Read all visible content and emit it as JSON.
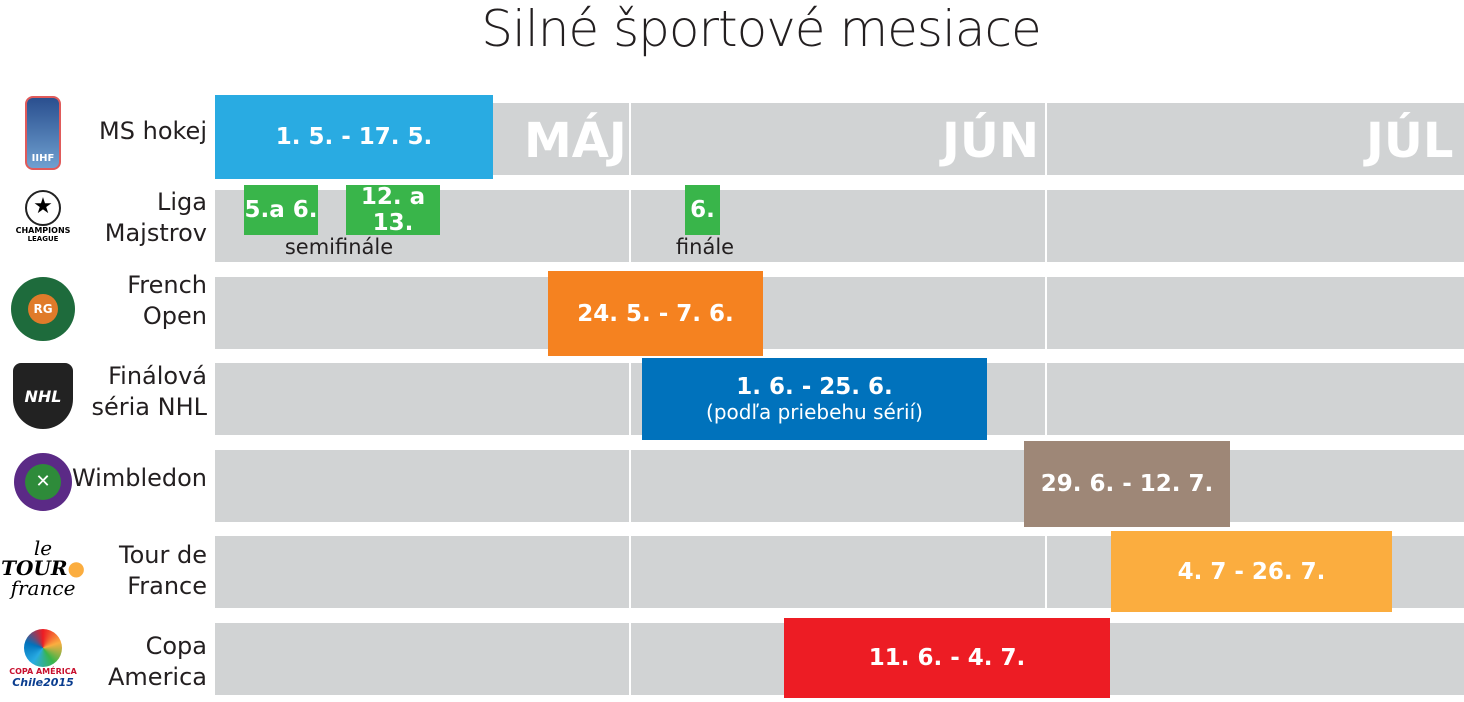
{
  "title": "Silné športové mesiace",
  "months": [
    "MÁJ",
    "JÚN",
    "JÚL"
  ],
  "colors": {
    "grid": "#d1d3d4",
    "hockey": "#29abe2",
    "cl": "#39b54a",
    "french": "#f58220",
    "nhl": "#0072bc",
    "wimbledon": "#9e8777",
    "tour": "#fbad3f",
    "copa": "#ed1c24"
  },
  "chart_data": {
    "type": "gantt",
    "title": "Silné športové mesiace",
    "x_axis": {
      "categories": [
        "MÁJ",
        "JÚN",
        "JÚL"
      ]
    },
    "rows": [
      {
        "event": "MS hokej",
        "logo": "IIHF",
        "bars": [
          {
            "label": "1. 5. - 17. 5.",
            "start": "05-01",
            "end": "05-17"
          }
        ]
      },
      {
        "event": "Liga Majstrov",
        "logo": "CHAMPIONS LEAGUE",
        "bars": [
          {
            "label": "5.a 6.",
            "start": "05-05",
            "end": "05-06"
          },
          {
            "label": "12. a 13.",
            "start": "05-12",
            "end": "05-13"
          },
          {
            "label": "6.",
            "start": "06-06",
            "end": "06-06"
          }
        ],
        "captions": [
          "semifinále",
          "finále"
        ]
      },
      {
        "event": "French Open",
        "logo": "ROLAND GARROS PARIS",
        "bars": [
          {
            "label": "24. 5. - 7. 6.",
            "start": "05-24",
            "end": "06-07"
          }
        ]
      },
      {
        "event": "Finálová séria NHL",
        "logo": "NHL",
        "bars": [
          {
            "label": "1. 6. - 25. 6.",
            "note": "(podľa priebehu sérií)",
            "start": "06-01",
            "end": "06-25"
          }
        ]
      },
      {
        "event": "Wimbledon",
        "logo": "THE CHAMPIONSHIPS WIMBLEDON",
        "bars": [
          {
            "label": "29. 6. - 12. 7.",
            "start": "06-29",
            "end": "07-12"
          }
        ]
      },
      {
        "event": "Tour de France",
        "logo": "Le Tour de France",
        "bars": [
          {
            "label": "4. 7 - 26. 7.",
            "start": "07-04",
            "end": "07-26"
          }
        ]
      },
      {
        "event": "Copa America",
        "logo": "COPA AMÉRICA Chile 2015",
        "bars": [
          {
            "label": "11. 6. - 4. 7.",
            "start": "06-11",
            "end": "07-04"
          }
        ]
      }
    ]
  }
}
